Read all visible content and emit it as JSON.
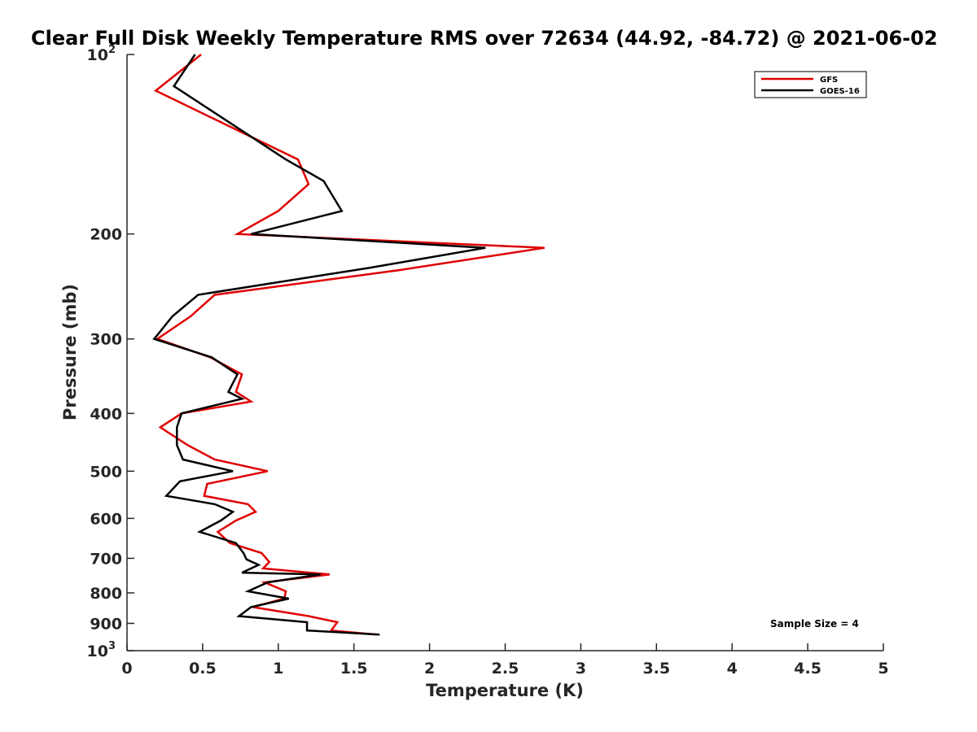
{
  "chart_data": {
    "type": "line",
    "title": "Clear Full Disk Weekly Temperature RMS over 72634 (44.92, -84.72) @ 2021-06-02",
    "xlabel": "Temperature (K)",
    "ylabel": "Pressure (mb)",
    "xlim": [
      0,
      5
    ],
    "ylim": [
      100,
      1000
    ],
    "y_scale": "log",
    "y_reversed": true,
    "x_ticks": [
      "0",
      "0.5",
      "1",
      "1.5",
      "2",
      "2.5",
      "3",
      "3.5",
      "4",
      "4.5",
      "5"
    ],
    "y_ticks": [
      {
        "value": 100,
        "label": "10",
        "sup": "2"
      },
      {
        "value": 200,
        "label": "200",
        "sup": ""
      },
      {
        "value": 300,
        "label": "300",
        "sup": ""
      },
      {
        "value": 400,
        "label": "400",
        "sup": ""
      },
      {
        "value": 500,
        "label": "500",
        "sup": ""
      },
      {
        "value": 600,
        "label": "600",
        "sup": ""
      },
      {
        "value": 700,
        "label": "700",
        "sup": ""
      },
      {
        "value": 800,
        "label": "800",
        "sup": ""
      },
      {
        "value": 900,
        "label": "900",
        "sup": ""
      },
      {
        "value": 1000,
        "label": "10",
        "sup": "3"
      }
    ],
    "grid": false,
    "legend_position": "top-right",
    "annotation": "Sample Size = 4",
    "series": [
      {
        "name": "GFS",
        "color": "#e00000",
        "points": [
          [
            0.49,
            100
          ],
          [
            0.19,
            115
          ],
          [
            1.13,
            150
          ],
          [
            1.2,
            165
          ],
          [
            1.0,
            183
          ],
          [
            0.73,
            200
          ],
          [
            2.76,
            211
          ],
          [
            1.8,
            230
          ],
          [
            0.58,
            253
          ],
          [
            0.42,
            275
          ],
          [
            0.2,
            300
          ],
          [
            0.55,
            322
          ],
          [
            0.76,
            344
          ],
          [
            0.72,
            368
          ],
          [
            0.82,
            382
          ],
          [
            0.36,
            400
          ],
          [
            0.22,
            422
          ],
          [
            0.4,
            452
          ],
          [
            0.58,
            478
          ],
          [
            0.93,
            500
          ],
          [
            0.53,
            525
          ],
          [
            0.51,
            550
          ],
          [
            0.8,
            568
          ],
          [
            0.85,
            585
          ],
          [
            0.72,
            605
          ],
          [
            0.6,
            632
          ],
          [
            0.68,
            660
          ],
          [
            0.89,
            686
          ],
          [
            0.94,
            710
          ],
          [
            0.9,
            728
          ],
          [
            1.34,
            745
          ],
          [
            0.91,
            768
          ],
          [
            1.05,
            795
          ],
          [
            1.04,
            818
          ],
          [
            0.83,
            845
          ],
          [
            1.2,
            875
          ],
          [
            1.39,
            896
          ],
          [
            1.35,
            925
          ],
          [
            1.65,
            940
          ]
        ]
      },
      {
        "name": "GOES-16",
        "color": "#000000",
        "points": [
          [
            0.45,
            100
          ],
          [
            0.31,
            113
          ],
          [
            1.05,
            150
          ],
          [
            1.3,
            163
          ],
          [
            1.42,
            183
          ],
          [
            0.82,
            200
          ],
          [
            2.37,
            211
          ],
          [
            1.6,
            228
          ],
          [
            0.47,
            253
          ],
          [
            0.3,
            275
          ],
          [
            0.18,
            300
          ],
          [
            0.56,
            322
          ],
          [
            0.73,
            344
          ],
          [
            0.67,
            368
          ],
          [
            0.76,
            378
          ],
          [
            0.36,
            400
          ],
          [
            0.33,
            422
          ],
          [
            0.33,
            452
          ],
          [
            0.37,
            478
          ],
          [
            0.7,
            500
          ],
          [
            0.35,
            520
          ],
          [
            0.26,
            550
          ],
          [
            0.58,
            568
          ],
          [
            0.7,
            585
          ],
          [
            0.62,
            605
          ],
          [
            0.48,
            632
          ],
          [
            0.72,
            660
          ],
          [
            0.77,
            686
          ],
          [
            0.79,
            703
          ],
          [
            0.87,
            718
          ],
          [
            0.76,
            740
          ],
          [
            1.28,
            745
          ],
          [
            0.93,
            768
          ],
          [
            0.8,
            795
          ],
          [
            1.07,
            818
          ],
          [
            0.82,
            845
          ],
          [
            0.74,
            875
          ],
          [
            1.19,
            896
          ],
          [
            1.19,
            925
          ],
          [
            1.67,
            940
          ]
        ]
      }
    ]
  }
}
